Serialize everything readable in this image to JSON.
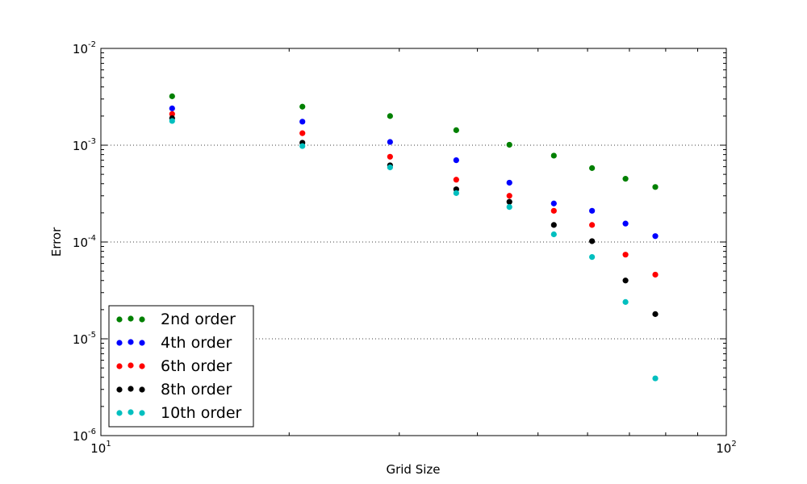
{
  "chart_data": {
    "type": "scatter",
    "title": "",
    "xlabel": "Grid Size",
    "ylabel": "Error",
    "xscale": "log",
    "yscale": "log",
    "xlim": [
      10,
      100
    ],
    "ylim": [
      1e-06,
      0.01
    ],
    "x_ticks": [
      {
        "value": 10,
        "base": "10",
        "exp": "1"
      },
      {
        "value": 100,
        "base": "10",
        "exp": "2"
      }
    ],
    "y_ticks": [
      {
        "value": 1e-06,
        "base": "10",
        "exp": "-6"
      },
      {
        "value": 1e-05,
        "base": "10",
        "exp": "-5"
      },
      {
        "value": 0.0001,
        "base": "10",
        "exp": "-4"
      },
      {
        "value": 0.001,
        "base": "10",
        "exp": "-3"
      },
      {
        "value": 0.01,
        "base": "10",
        "exp": "-2"
      }
    ],
    "grid": "horizontal dotted at major y ticks",
    "legend_position": "lower-left",
    "x": [
      13,
      21,
      29,
      37,
      45,
      53,
      61,
      69,
      77
    ],
    "series": [
      {
        "name": "2nd order",
        "color": "#008000",
        "values": [
          0.0032,
          0.0025,
          0.002,
          0.00143,
          0.00101,
          0.00078,
          0.00058,
          0.00045,
          0.00037
        ]
      },
      {
        "name": "4th order",
        "color": "#0000ff",
        "values": [
          0.0024,
          0.00175,
          0.00108,
          0.0007,
          0.00041,
          0.00025,
          0.00021,
          0.000155,
          0.000115
        ]
      },
      {
        "name": "6th order",
        "color": "#ff0000",
        "values": [
          0.0021,
          0.00133,
          0.00076,
          0.00044,
          0.0003,
          0.00021,
          0.00015,
          7.4e-05,
          4.6e-05
        ]
      },
      {
        "name": "8th order",
        "color": "#000000",
        "values": [
          0.0019,
          0.00106,
          0.00062,
          0.00035,
          0.00026,
          0.00015,
          0.000102,
          4e-05,
          1.8e-05
        ]
      },
      {
        "name": "10th order",
        "color": "#00bfbf",
        "values": [
          0.00178,
          0.00098,
          0.00059,
          0.00032,
          0.00023,
          0.00012,
          7e-05,
          2.4e-05,
          3.9e-06
        ]
      }
    ]
  }
}
